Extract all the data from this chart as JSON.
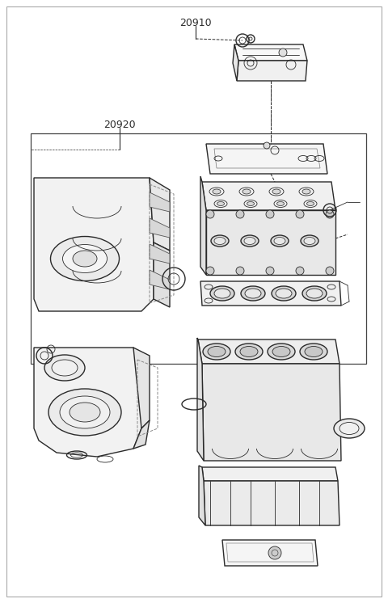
{
  "background_color": "#ffffff",
  "line_color": "#2a2a2a",
  "light_line_color": "#555555",
  "label_20910": "20910",
  "label_20920": "20920",
  "fig_width": 4.8,
  "fig_height": 7.46,
  "dpi": 100
}
